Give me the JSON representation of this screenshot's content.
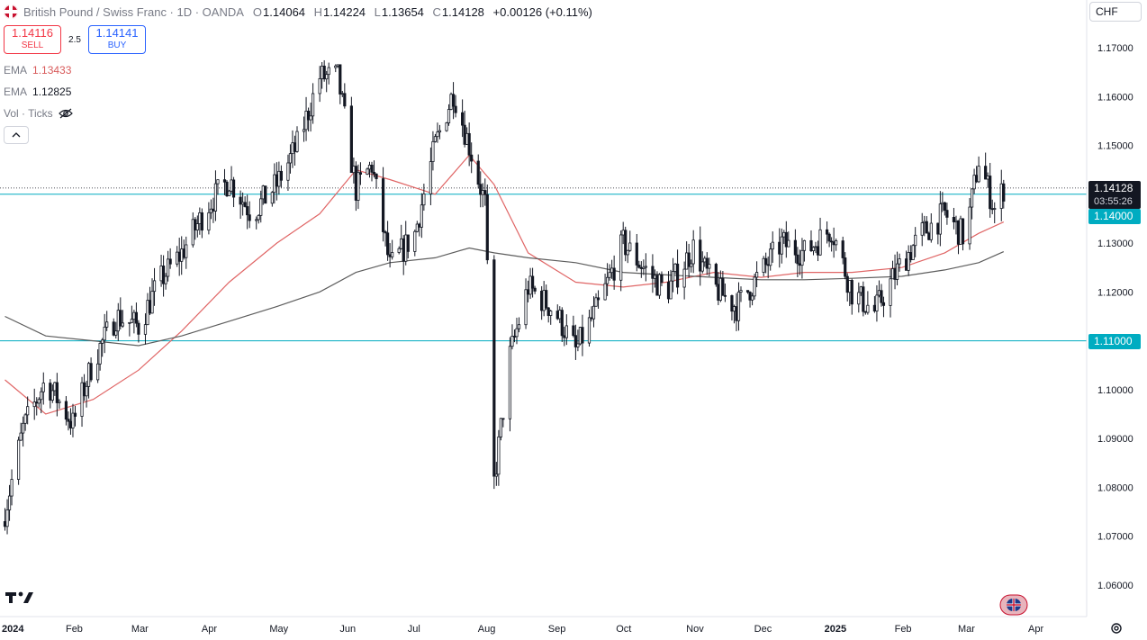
{
  "header": {
    "symbol_title": "British Pound / Swiss Franc · 1D · OANDA",
    "ohlc": [
      {
        "key": "O",
        "value": "1.14064"
      },
      {
        "key": "H",
        "value": "1.14224"
      },
      {
        "key": "L",
        "value": "1.13654"
      },
      {
        "key": "C",
        "value": "1.14128"
      }
    ],
    "change": "+0.00126 (+0.11%)"
  },
  "trade": {
    "sell_price": "1.14116",
    "sell_label": "SELL",
    "spread": "2.5",
    "buy_price": "1.14141",
    "buy_label": "BUY"
  },
  "indicators": [
    {
      "name": "EMA",
      "value": "1.13433"
    },
    {
      "name": "EMA",
      "value": "1.12825"
    },
    {
      "name": "Vol · Ticks",
      "value": ""
    }
  ],
  "currency": "CHF",
  "price_axis": {
    "ticks": [
      "1.17000",
      "1.16000",
      "1.15000",
      "1.14000",
      "1.13000",
      "1.12000",
      "1.11000",
      "1.10000",
      "1.09000",
      "1.08000",
      "1.07000",
      "1.06000"
    ],
    "current_price": "1.14128",
    "countdown": "03:55:26",
    "level_labels": [
      "1.14000",
      "1.11000"
    ]
  },
  "time_axis": {
    "labels": [
      "2024",
      "Feb",
      "Mar",
      "Apr",
      "May",
      "Jun",
      "Jul",
      "Aug",
      "Sep",
      "Oct",
      "Nov",
      "Dec",
      "2025",
      "Feb",
      "Mar",
      "Apr"
    ]
  },
  "colors": {
    "up": "#131722",
    "down": "#131722",
    "ema_fast": "#e06666",
    "ema_slow": "#5d5d5d",
    "horizontal_levels": "#00acc1",
    "current_price_bg": "#131722",
    "level_bg": "#00acc1"
  },
  "chart_data": {
    "type": "line",
    "title": "British Pound / Swiss Franc · 1D · OANDA",
    "ylim": [
      1.055,
      1.175
    ],
    "x": [
      "2024",
      "Feb",
      "Mar",
      "Apr",
      "May",
      "Jun",
      "Jul",
      "Aug",
      "Sep",
      "Oct",
      "Nov",
      "Dec",
      "2025",
      "Feb",
      "Mar",
      "Apr"
    ],
    "horizontal_levels": [
      1.14,
      1.11
    ],
    "current_price": 1.14128,
    "series": [
      {
        "name": "Close",
        "x": [
          "2024-01-02",
          "2024-01-10",
          "2024-01-20",
          "2024-02-01",
          "2024-02-10",
          "2024-02-20",
          "2024-03-01",
          "2024-03-10",
          "2024-03-20",
          "2024-04-01",
          "2024-04-10",
          "2024-04-20",
          "2024-05-01",
          "2024-05-10",
          "2024-05-20",
          "2024-05-28",
          "2024-06-05",
          "2024-06-12",
          "2024-06-20",
          "2024-07-01",
          "2024-07-10",
          "2024-07-18",
          "2024-07-25",
          "2024-08-01",
          "2024-08-05",
          "2024-08-12",
          "2024-08-20",
          "2024-09-01",
          "2024-09-10",
          "2024-09-20",
          "2024-10-01",
          "2024-10-10",
          "2024-10-20",
          "2024-11-01",
          "2024-11-10",
          "2024-11-20",
          "2024-12-01",
          "2024-12-10",
          "2024-12-20",
          "2025-01-01",
          "2025-01-10",
          "2025-01-20",
          "2025-02-01",
          "2025-02-10",
          "2025-02-20",
          "2025-03-01",
          "2025-03-07",
          "2025-03-14",
          "2025-03-18"
        ],
        "values": [
          1.075,
          1.092,
          1.102,
          1.093,
          1.106,
          1.115,
          1.113,
          1.122,
          1.128,
          1.138,
          1.143,
          1.136,
          1.142,
          1.15,
          1.164,
          1.164,
          1.141,
          1.146,
          1.125,
          1.132,
          1.15,
          1.161,
          1.15,
          1.138,
          1.081,
          1.107,
          1.121,
          1.116,
          1.108,
          1.117,
          1.13,
          1.125,
          1.12,
          1.129,
          1.121,
          1.117,
          1.124,
          1.13,
          1.128,
          1.133,
          1.12,
          1.116,
          1.126,
          1.132,
          1.136,
          1.131,
          1.147,
          1.137,
          1.14128
        ]
      },
      {
        "name": "EMA",
        "x": [
          "2024-01-02",
          "2024-01-20",
          "2024-02-10",
          "2024-03-01",
          "2024-03-20",
          "2024-04-10",
          "2024-05-01",
          "2024-05-20",
          "2024-06-05",
          "2024-06-20",
          "2024-07-10",
          "2024-07-25",
          "2024-08-05",
          "2024-08-20",
          "2024-09-10",
          "2024-10-01",
          "2024-10-20",
          "2024-11-10",
          "2024-12-01",
          "2024-12-20",
          "2025-01-10",
          "2025-02-01",
          "2025-02-20",
          "2025-03-07",
          "2025-03-18"
        ],
        "values": [
          1.102,
          1.095,
          1.098,
          1.104,
          1.112,
          1.122,
          1.13,
          1.136,
          1.145,
          1.143,
          1.14,
          1.148,
          1.142,
          1.128,
          1.122,
          1.121,
          1.122,
          1.124,
          1.123,
          1.124,
          1.124,
          1.125,
          1.128,
          1.132,
          1.13433
        ]
      },
      {
        "name": "EMA",
        "x": [
          "2024-01-02",
          "2024-01-20",
          "2024-02-10",
          "2024-03-01",
          "2024-03-20",
          "2024-04-10",
          "2024-05-01",
          "2024-05-20",
          "2024-06-05",
          "2024-06-20",
          "2024-07-10",
          "2024-07-25",
          "2024-08-05",
          "2024-08-20",
          "2024-09-10",
          "2024-10-01",
          "2024-10-20",
          "2024-11-10",
          "2024-12-01",
          "2024-12-20",
          "2025-01-10",
          "2025-02-01",
          "2025-02-20",
          "2025-03-07",
          "2025-03-18"
        ],
        "values": [
          1.115,
          1.111,
          1.11,
          1.109,
          1.111,
          1.114,
          1.117,
          1.12,
          1.124,
          1.126,
          1.127,
          1.129,
          1.128,
          1.127,
          1.126,
          1.124,
          1.1235,
          1.123,
          1.1225,
          1.1225,
          1.1228,
          1.1232,
          1.1245,
          1.126,
          1.12825
        ]
      }
    ]
  }
}
